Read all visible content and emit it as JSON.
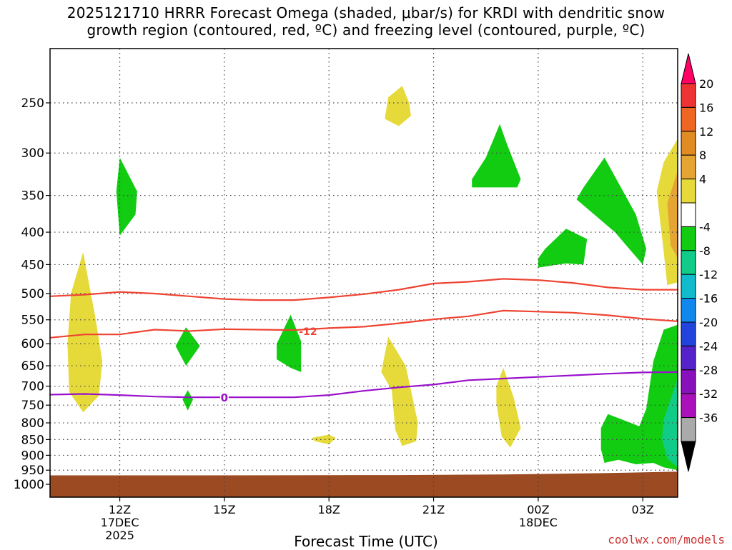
{
  "title_line1": "2025121710 HRRR Forecast Omega (shaded, μbar/s) for KRDI with dendritic snow",
  "title_line2": "growth region (contoured, red, ºC) and freezing level (contoured, purple, ºC)",
  "x_axis_title": "Forecast Time (UTC)",
  "credit": "coolwx.com/models",
  "chart_data": {
    "type": "heatmap",
    "title": "2025121710 HRRR Forecast Omega (shaded, μbar/s) for KRDI with dendritic snow growth region (contoured, red, ºC) and freezing level (contoured, purple, ºC)",
    "xlabel": "Forecast Time (UTC)",
    "ylabel": "",
    "x_range_hours_utc": [
      10,
      28
    ],
    "y_range_mb": [
      1000,
      200
    ],
    "y_scale": "log-pressure",
    "grid": true,
    "x_ticks": [
      {
        "hour": 12,
        "label": "12Z",
        "sub1": "17DEC",
        "sub2": "2025"
      },
      {
        "hour": 15,
        "label": "15Z",
        "sub1": "",
        "sub2": ""
      },
      {
        "hour": 18,
        "label": "18Z",
        "sub1": "",
        "sub2": ""
      },
      {
        "hour": 21,
        "label": "21Z",
        "sub1": "",
        "sub2": ""
      },
      {
        "hour": 24,
        "label": "00Z",
        "sub1": "18DEC",
        "sub2": ""
      },
      {
        "hour": 27,
        "label": "03Z",
        "sub1": "",
        "sub2": ""
      }
    ],
    "y_ticks": [
      250,
      300,
      350,
      400,
      450,
      500,
      550,
      600,
      650,
      700,
      750,
      800,
      850,
      900,
      950,
      1000
    ],
    "colorbar": {
      "labels": [
        "20",
        "16",
        "12",
        "8",
        "4",
        "-4",
        "-8",
        "-12",
        "-16",
        "-20",
        "-24",
        "-28",
        "-32",
        "-36"
      ],
      "colors": [
        "#ff0066",
        "#ee3333",
        "#ee6622",
        "#e08c22",
        "#e6a533",
        "#e6da3a",
        "#ffffff",
        "#11cc11",
        "#11cc88",
        "#11bbcc",
        "#1188ee",
        "#2244dd",
        "#5522cc",
        "#8811bb",
        "#aa11bb",
        "#aaaaaa",
        "#000000"
      ]
    },
    "omega_regions": [
      {
        "value": "4 to 8",
        "color": "#e6da3a",
        "points": [
          [
            10.95,
            430
          ],
          [
            11.3,
            545
          ],
          [
            11.5,
            640
          ],
          [
            11.4,
            725
          ],
          [
            10.95,
            770
          ],
          [
            10.55,
            715
          ],
          [
            10.5,
            600
          ],
          [
            10.6,
            500
          ]
        ]
      },
      {
        "value": "-4 to -8",
        "color": "#11cc11",
        "points": [
          [
            12.0,
            305
          ],
          [
            12.5,
            345
          ],
          [
            12.45,
            375
          ],
          [
            12.0,
            405
          ],
          [
            11.9,
            345
          ]
        ]
      },
      {
        "value": "4 to 8",
        "color": "#e6da3a",
        "points": [
          [
            20.1,
            235
          ],
          [
            20.3,
            250
          ],
          [
            20.35,
            262
          ],
          [
            20.0,
            272
          ],
          [
            19.6,
            265
          ],
          [
            19.7,
            245
          ]
        ]
      },
      {
        "value": "-4 to -8",
        "color": "#11cc11",
        "points": [
          [
            22.9,
            270
          ],
          [
            23.1,
            290
          ],
          [
            23.5,
            330
          ],
          [
            23.4,
            340
          ],
          [
            22.1,
            340
          ],
          [
            22.1,
            330
          ],
          [
            22.5,
            305
          ]
        ]
      },
      {
        "value": "-4 to -8",
        "color": "#11cc11",
        "points": [
          [
            25.9,
            305
          ],
          [
            26.8,
            375
          ],
          [
            27.1,
            425
          ],
          [
            27.0,
            450
          ],
          [
            26.2,
            400
          ],
          [
            25.1,
            355
          ],
          [
            25.3,
            340
          ]
        ]
      },
      {
        "value": "-4 to -8",
        "color": "#11cc11",
        "points": [
          [
            24.8,
            395
          ],
          [
            25.4,
            410
          ],
          [
            25.3,
            450
          ],
          [
            24.8,
            448
          ],
          [
            24.0,
            455
          ],
          [
            24.0,
            440
          ],
          [
            24.2,
            425
          ]
        ]
      },
      {
        "value": "4 to 8",
        "color": "#e6da3a",
        "points": [
          [
            28.0,
            285
          ],
          [
            28.0,
            480
          ],
          [
            27.7,
            485
          ],
          [
            27.6,
            430
          ],
          [
            27.4,
            345
          ],
          [
            27.6,
            310
          ]
        ]
      },
      {
        "value": "8 to 12",
        "color": "#e6a533",
        "points": [
          [
            28.0,
            320
          ],
          [
            28.0,
            440
          ],
          [
            27.8,
            420
          ],
          [
            27.7,
            360
          ]
        ]
      },
      {
        "value": "-4 to -8",
        "color": "#11cc11",
        "points": [
          [
            13.9,
            565
          ],
          [
            14.3,
            605
          ],
          [
            13.9,
            650
          ],
          [
            13.6,
            605
          ]
        ]
      },
      {
        "value": "-4 to -8",
        "color": "#11cc11",
        "points": [
          [
            13.95,
            710
          ],
          [
            14.1,
            735
          ],
          [
            13.95,
            765
          ],
          [
            13.8,
            735
          ]
        ]
      },
      {
        "value": "-4 to -8",
        "color": "#11cc11",
        "points": [
          [
            16.9,
            540
          ],
          [
            17.2,
            595
          ],
          [
            17.2,
            665
          ],
          [
            16.9,
            655
          ],
          [
            16.5,
            635
          ],
          [
            16.5,
            600
          ]
        ]
      },
      {
        "value": "4 to 8",
        "color": "#e6da3a",
        "points": [
          [
            19.7,
            585
          ],
          [
            20.2,
            650
          ],
          [
            20.55,
            800
          ],
          [
            20.5,
            855
          ],
          [
            20.1,
            870
          ],
          [
            19.9,
            820
          ],
          [
            19.8,
            710
          ],
          [
            19.5,
            665
          ]
        ]
      },
      {
        "value": "4 to 8",
        "color": "#e6da3a",
        "points": [
          [
            18.0,
            835
          ],
          [
            18.2,
            845
          ],
          [
            18.0,
            865
          ],
          [
            17.6,
            855
          ],
          [
            17.5,
            845
          ]
        ]
      },
      {
        "value": "4 to 8",
        "color": "#e6da3a",
        "points": [
          [
            23.0,
            655
          ],
          [
            23.3,
            730
          ],
          [
            23.5,
            815
          ],
          [
            23.2,
            875
          ],
          [
            22.95,
            840
          ],
          [
            22.8,
            745
          ],
          [
            22.8,
            700
          ]
        ]
      },
      {
        "value": "-4 to -8",
        "color": "#11cc11",
        "points": [
          [
            28.0,
            560
          ],
          [
            28.0,
            950
          ],
          [
            27.6,
            940
          ],
          [
            27.3,
            925
          ],
          [
            26.8,
            930
          ],
          [
            26.3,
            915
          ],
          [
            25.9,
            925
          ],
          [
            25.8,
            880
          ],
          [
            25.8,
            815
          ],
          [
            26.0,
            775
          ],
          [
            26.4,
            790
          ],
          [
            26.9,
            810
          ],
          [
            27.1,
            760
          ],
          [
            27.3,
            640
          ],
          [
            27.6,
            570
          ]
        ]
      },
      {
        "value": "-8 to -12",
        "color": "#11cc88",
        "points": [
          [
            28.0,
            680
          ],
          [
            28.0,
            940
          ],
          [
            27.7,
            910
          ],
          [
            27.55,
            850
          ],
          [
            27.6,
            790
          ],
          [
            27.85,
            720
          ]
        ]
      }
    ],
    "dendritic_contours": [
      {
        "label": "-12",
        "points": [
          [
            10,
            505
          ],
          [
            11.0,
            502
          ],
          [
            12.0,
            497
          ],
          [
            13.0,
            500
          ],
          [
            14.0,
            505
          ],
          [
            15.0,
            510
          ],
          [
            16.0,
            512
          ],
          [
            17.0,
            512
          ],
          [
            18.0,
            507
          ],
          [
            19.0,
            501
          ],
          [
            20.0,
            493
          ],
          [
            21.0,
            482
          ],
          [
            22.0,
            479
          ],
          [
            23.0,
            474
          ],
          [
            24.0,
            476
          ],
          [
            25.0,
            481
          ],
          [
            26.0,
            489
          ],
          [
            27.0,
            493
          ],
          [
            28.0,
            493
          ]
        ]
      },
      {
        "label": "-12",
        "points": [
          [
            10,
            587
          ],
          [
            11.0,
            580
          ],
          [
            12.0,
            580
          ],
          [
            13.0,
            570
          ],
          [
            14.0,
            573
          ],
          [
            15.0,
            569
          ],
          [
            16.0,
            570
          ],
          [
            17.0,
            571
          ],
          [
            18.0,
            567
          ],
          [
            19.0,
            564
          ],
          [
            20.0,
            557
          ],
          [
            21.0,
            549
          ],
          [
            22.0,
            543
          ],
          [
            23.0,
            532
          ],
          [
            24.0,
            534
          ],
          [
            25.0,
            536
          ],
          [
            26.0,
            541
          ],
          [
            27.0,
            548
          ],
          [
            28.0,
            553
          ]
        ]
      }
    ],
    "freezing_level": {
      "label": "0",
      "points": [
        [
          10,
          722
        ],
        [
          11.0,
          720
        ],
        [
          12.0,
          723
        ],
        [
          13.0,
          727
        ],
        [
          14.0,
          729
        ],
        [
          15.0,
          729
        ],
        [
          16.0,
          729
        ],
        [
          17.0,
          729
        ],
        [
          18.0,
          723
        ],
        [
          19.0,
          712
        ],
        [
          20.0,
          703
        ],
        [
          21.0,
          696
        ],
        [
          22.0,
          685
        ],
        [
          23.0,
          681
        ],
        [
          24.0,
          677
        ],
        [
          25.0,
          673
        ],
        [
          26.0,
          669
        ],
        [
          27.0,
          666
        ],
        [
          28.0,
          665
        ]
      ]
    },
    "ground": {
      "color": "#9b4a22",
      "points": [
        [
          10,
          968
        ],
        [
          14,
          968
        ],
        [
          20,
          967
        ],
        [
          23,
          965
        ],
        [
          26,
          960
        ],
        [
          28,
          955
        ]
      ]
    }
  }
}
